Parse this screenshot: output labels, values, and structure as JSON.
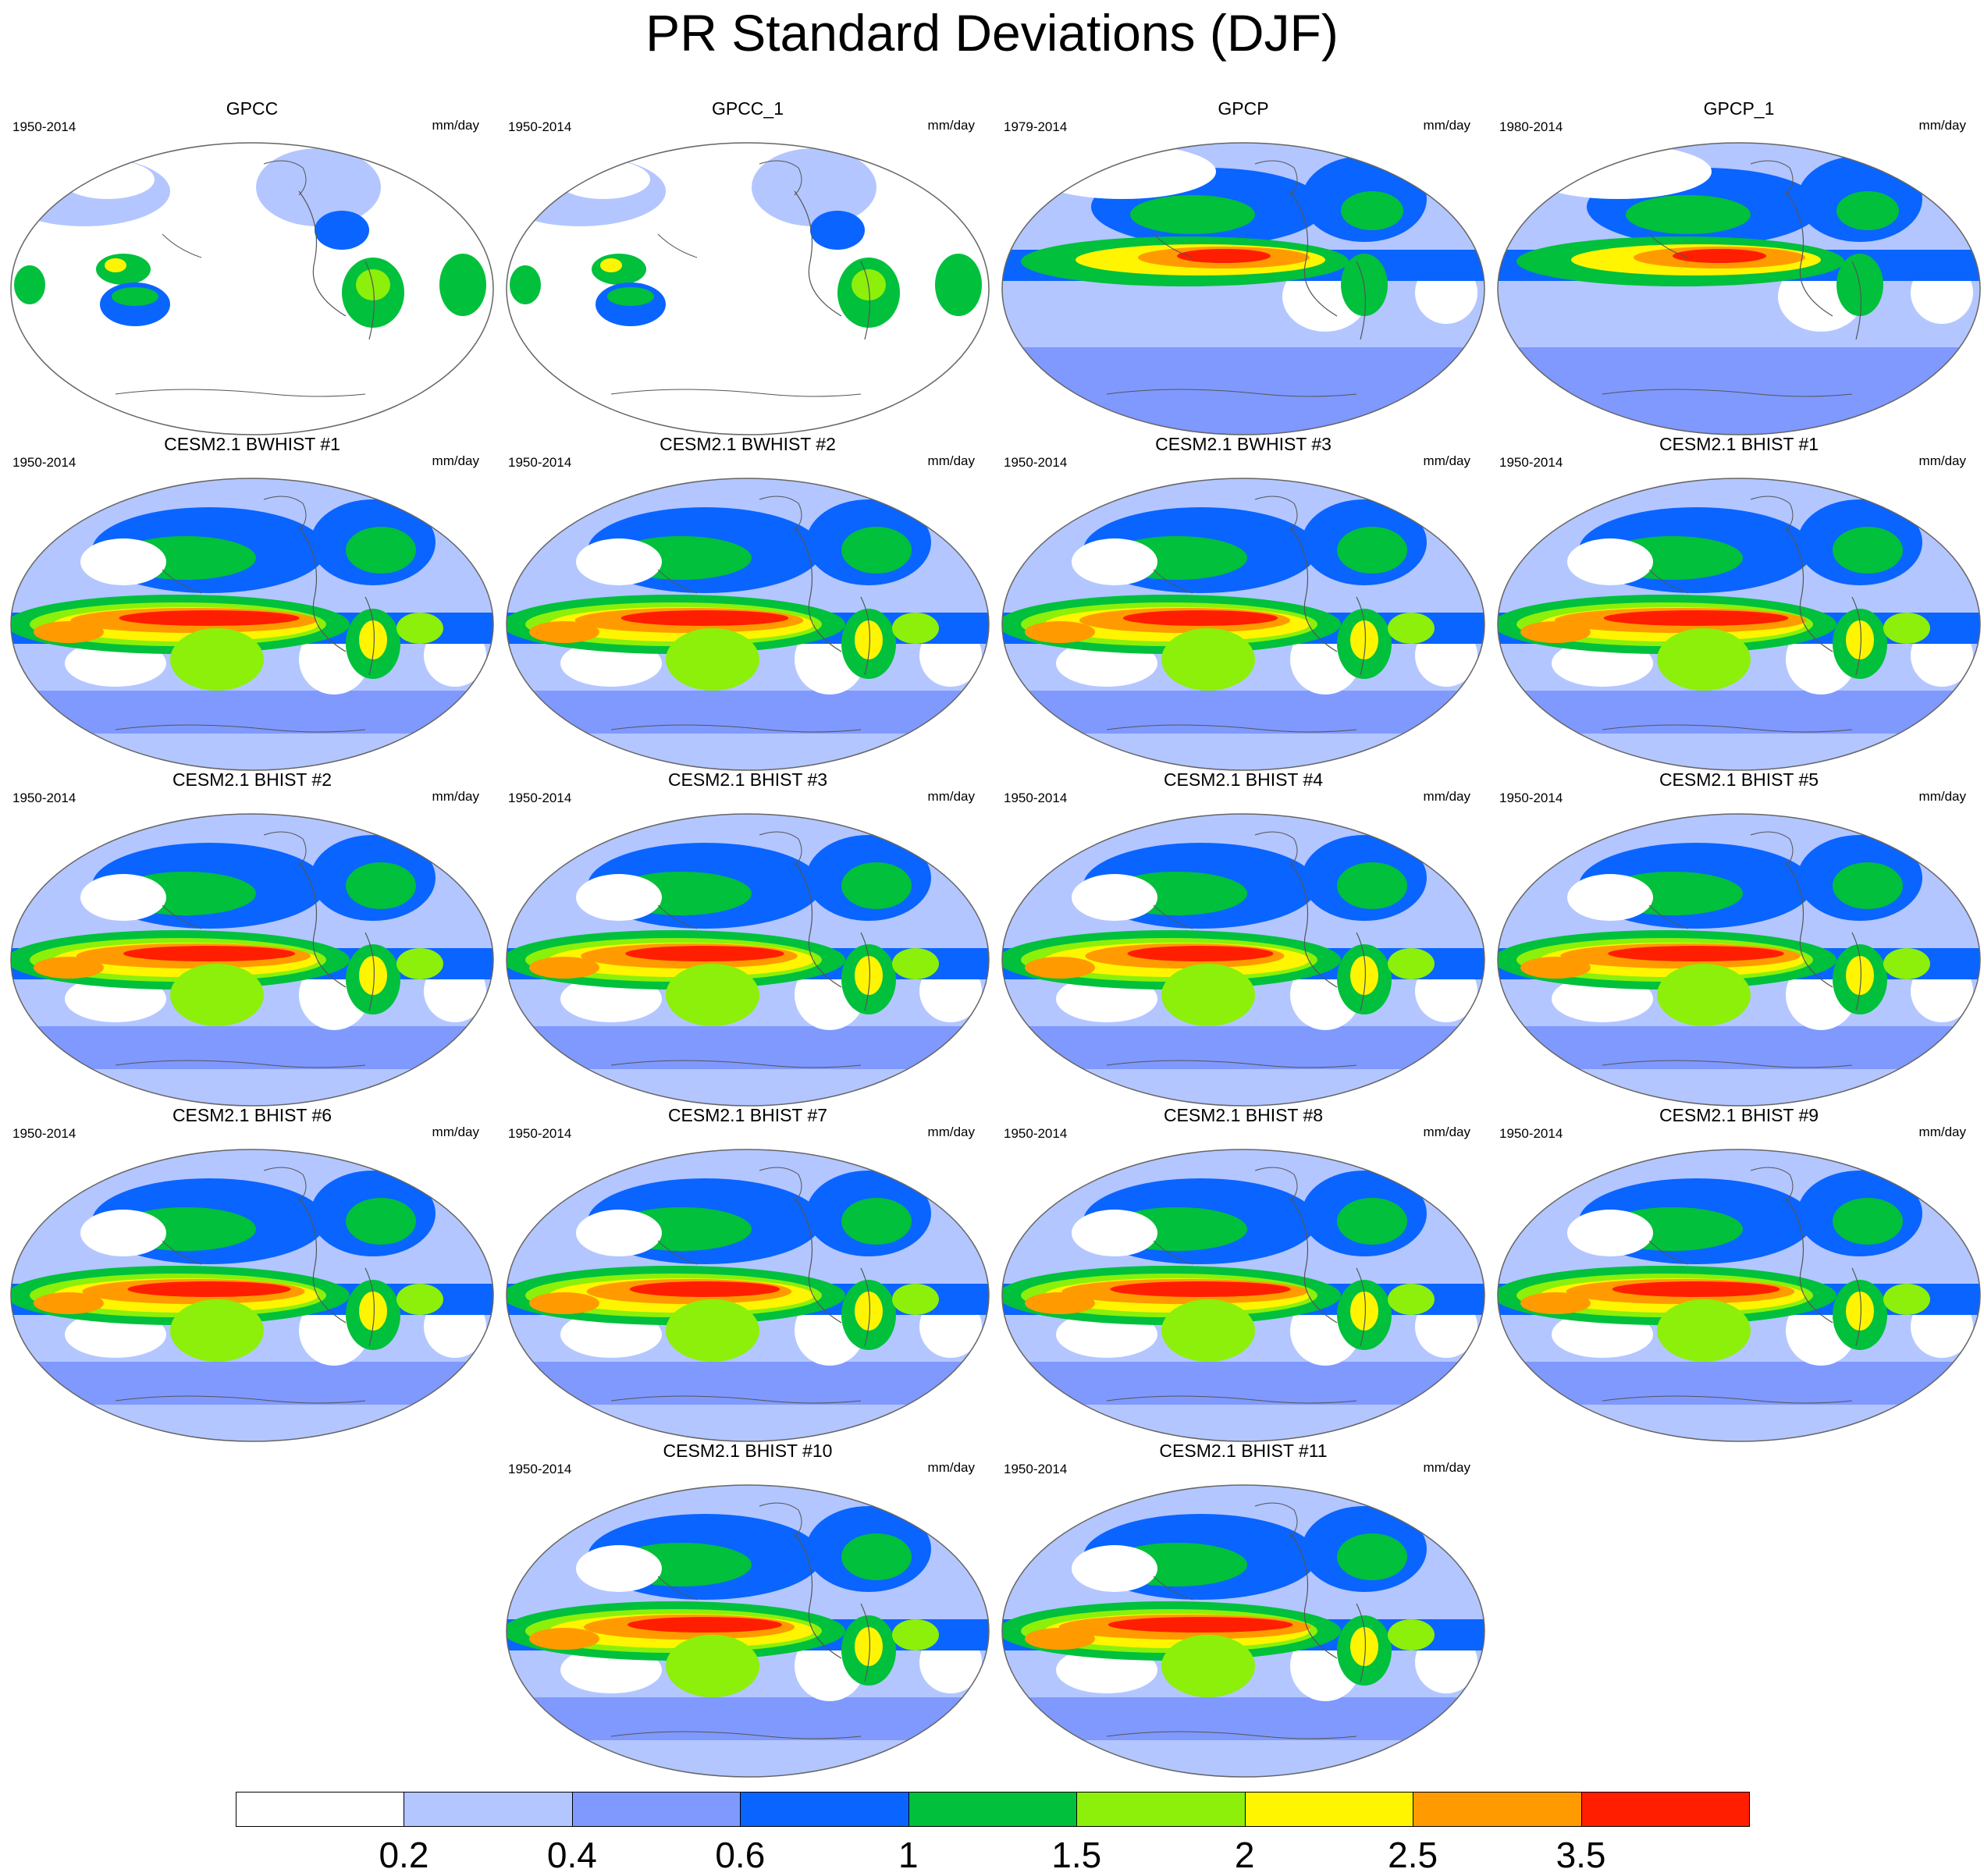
{
  "title": "PR Standard Deviations (DJF)",
  "units": "mm/day",
  "colorbar": {
    "labels": [
      "0.2",
      "0.4",
      "0.6",
      "1",
      "1.5",
      "2",
      "2.5",
      "3.5"
    ],
    "colors": [
      "#ffffff",
      "#b3c6ff",
      "#7f99ff",
      "#0a64ff",
      "#00c03c",
      "#8cf00a",
      "#fff500",
      "#ff9b00",
      "#ff1e00"
    ]
  },
  "panels": [
    {
      "title": "GPCC",
      "years": "1950-2014",
      "type": "land"
    },
    {
      "title": "GPCC_1",
      "years": "1950-2014",
      "type": "land"
    },
    {
      "title": "GPCP",
      "years": "1979-2014",
      "type": "obs"
    },
    {
      "title": "GPCP_1",
      "years": "1980-2014",
      "type": "obs"
    },
    {
      "title": "CESM2.1 BWHIST #1",
      "years": "1950-2014",
      "type": "model"
    },
    {
      "title": "CESM2.1 BWHIST #2",
      "years": "1950-2014",
      "type": "model"
    },
    {
      "title": "CESM2.1 BWHIST #3",
      "years": "1950-2014",
      "type": "model"
    },
    {
      "title": "CESM2.1 BHIST #1",
      "years": "1950-2014",
      "type": "model"
    },
    {
      "title": "CESM2.1 BHIST #2",
      "years": "1950-2014",
      "type": "model"
    },
    {
      "title": "CESM2.1 BHIST #3",
      "years": "1950-2014",
      "type": "model"
    },
    {
      "title": "CESM2.1 BHIST #4",
      "years": "1950-2014",
      "type": "model"
    },
    {
      "title": "CESM2.1 BHIST #5",
      "years": "1950-2014",
      "type": "model"
    },
    {
      "title": "CESM2.1 BHIST #6",
      "years": "1950-2014",
      "type": "model"
    },
    {
      "title": "CESM2.1 BHIST #7",
      "years": "1950-2014",
      "type": "model"
    },
    {
      "title": "CESM2.1 BHIST #8",
      "years": "1950-2014",
      "type": "model"
    },
    {
      "title": "CESM2.1 BHIST #9",
      "years": "1950-2014",
      "type": "model"
    },
    {
      "title": "CESM2.1 BHIST #10",
      "years": "1950-2014",
      "type": "model"
    },
    {
      "title": "CESM2.1 BHIST #11",
      "years": "1950-2014",
      "type": "model"
    }
  ]
}
